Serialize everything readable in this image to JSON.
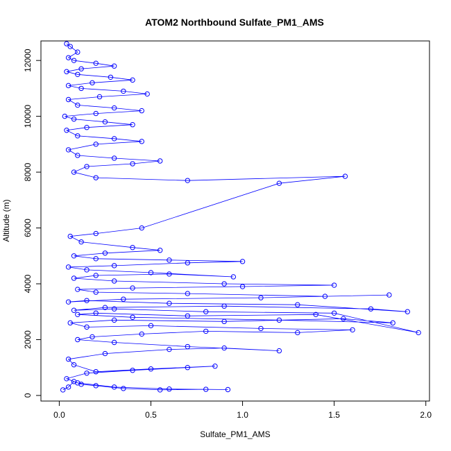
{
  "chart_data": {
    "type": "scatter",
    "title": "ATOM2 Northbound Sulfate_PM1_AMS",
    "xlabel": "Sulfate_PM1_AMS",
    "ylabel": "Altitude (m)",
    "xlim": [
      -0.1,
      2.02
    ],
    "ylim": [
      -200,
      12700
    ],
    "x_ticks": [
      0.0,
      0.5,
      1.0,
      1.5,
      2.0
    ],
    "x_tick_labels": [
      "0.0",
      "0.5",
      "1.0",
      "1.5",
      "2.0"
    ],
    "y_ticks": [
      0,
      2000,
      4000,
      6000,
      8000,
      10000,
      12000
    ],
    "y_tick_labels": [
      "0",
      "2000",
      "4000",
      "6000",
      "8000",
      "10000",
      "12000"
    ],
    "series_color": "#0000ff",
    "marker": "open-circle",
    "connected": true,
    "grid": false,
    "legend": "none",
    "series": [
      {
        "x": [
          0.02,
          0.05,
          0.08,
          0.12,
          0.2,
          0.35,
          0.55,
          0.8,
          0.92,
          0.6,
          0.3,
          0.1,
          0.04,
          0.15,
          0.4,
          0.7,
          0.85,
          0.5,
          0.2,
          0.08,
          0.05,
          0.25,
          0.6,
          0.9,
          1.2,
          0.7,
          0.3,
          0.1,
          0.18,
          0.45,
          0.8,
          1.3,
          1.6,
          1.1,
          0.5,
          0.15,
          0.06,
          0.3,
          0.9,
          1.55,
          1.82,
          1.2,
          0.4,
          0.1,
          0.2,
          0.7,
          1.4,
          1.96,
          1.5,
          0.8,
          0.3,
          0.08,
          0.25,
          0.9,
          1.7,
          1.9,
          1.3,
          0.6,
          0.15,
          0.05,
          0.35,
          1.1,
          1.8,
          1.45,
          0.7,
          0.2,
          0.1,
          0.4,
          1.0,
          1.5,
          0.9,
          0.3,
          0.08,
          0.2,
          0.6,
          0.95,
          0.5,
          0.15,
          0.05,
          0.3,
          0.7,
          1.0,
          0.6,
          0.2,
          0.08,
          0.25,
          0.55,
          0.4,
          0.12,
          0.06,
          0.2,
          0.45,
          1.2,
          1.56,
          0.7,
          0.2,
          0.08,
          0.15,
          0.4,
          0.55,
          0.3,
          0.1,
          0.05,
          0.2,
          0.45,
          0.3,
          0.1,
          0.04,
          0.15,
          0.4,
          0.25,
          0.08,
          0.03,
          0.2,
          0.45,
          0.3,
          0.1,
          0.05,
          0.22,
          0.48,
          0.35,
          0.12,
          0.05,
          0.18,
          0.4,
          0.28,
          0.1,
          0.04,
          0.12,
          0.3,
          0.2,
          0.08,
          0.05,
          0.1,
          0.06,
          0.04
        ],
        "y": [
          200,
          300,
          500,
          400,
          350,
          250,
          200,
          220,
          210,
          230,
          300,
          450,
          600,
          800,
          900,
          1000,
          1050,
          950,
          850,
          1100,
          1300,
          1500,
          1650,
          1700,
          1600,
          1750,
          1900,
          2000,
          2100,
          2200,
          2300,
          2250,
          2350,
          2400,
          2500,
          2450,
          2600,
          2700,
          2650,
          2750,
          2600,
          2700,
          2800,
          2900,
          2950,
          2850,
          2900,
          2250,
          2950,
          3000,
          3100,
          3050,
          3150,
          3200,
          3100,
          3000,
          3250,
          3300,
          3400,
          3350,
          3450,
          3500,
          3600,
          3550,
          3650,
          3700,
          3800,
          3850,
          3900,
          3950,
          4000,
          4100,
          4200,
          4300,
          4350,
          4250,
          4400,
          4500,
          4600,
          4650,
          4750,
          4800,
          4850,
          4900,
          5000,
          5100,
          5200,
          5300,
          5500,
          5700,
          5800,
          6000,
          7600,
          7850,
          7700,
          7800,
          8000,
          8200,
          8300,
          8400,
          8500,
          8600,
          8800,
          9000,
          9100,
          9200,
          9300,
          9500,
          9600,
          9700,
          9800,
          9900,
          10000,
          10100,
          10200,
          10300,
          10400,
          10600,
          10700,
          10800,
          10900,
          11000,
          11100,
          11200,
          11300,
          11400,
          11500,
          11600,
          11700,
          11800,
          11900,
          12000,
          12100,
          12300,
          12500,
          12600
        ]
      }
    ]
  }
}
